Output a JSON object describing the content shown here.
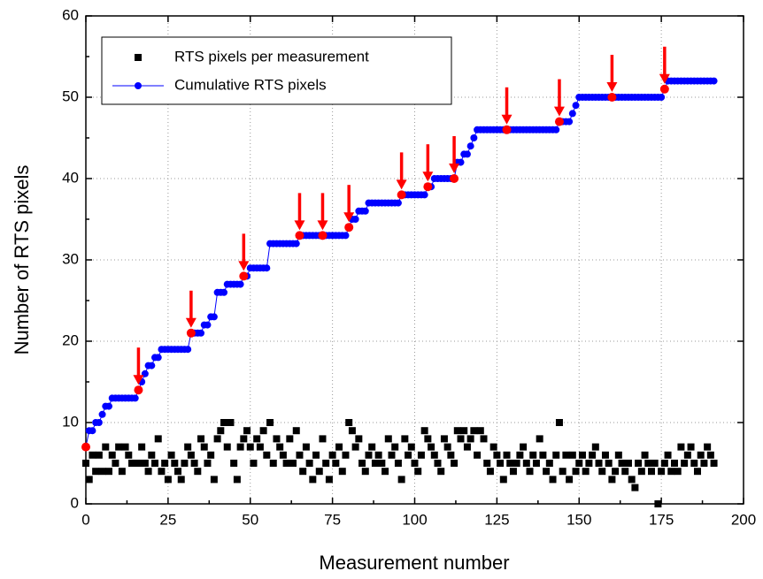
{
  "chart_data": {
    "type": "scatter-line",
    "x_label": "Measurement number",
    "y_label": "Number of RTS pixels",
    "xlim": [
      0,
      200
    ],
    "xticks": [
      0,
      25,
      50,
      75,
      100,
      125,
      150,
      175,
      200
    ],
    "ylim": [
      0,
      60
    ],
    "yticks": [
      0,
      10,
      20,
      30,
      40,
      50,
      60
    ],
    "grid": true,
    "legend": "upper left",
    "x": [
      0,
      1,
      2,
      3,
      4,
      5,
      6,
      7,
      8,
      9,
      10,
      11,
      12,
      13,
      14,
      15,
      16,
      17,
      18,
      19,
      20,
      21,
      22,
      23,
      24,
      25,
      26,
      27,
      28,
      29,
      30,
      31,
      32,
      33,
      34,
      35,
      36,
      37,
      38,
      39,
      40,
      41,
      42,
      43,
      44,
      45,
      46,
      47,
      48,
      49,
      50,
      51,
      52,
      53,
      54,
      55,
      56,
      57,
      58,
      59,
      60,
      61,
      62,
      63,
      64,
      65,
      66,
      67,
      68,
      69,
      70,
      71,
      72,
      73,
      74,
      75,
      76,
      77,
      78,
      79,
      80,
      81,
      82,
      83,
      84,
      85,
      86,
      87,
      88,
      89,
      90,
      91,
      92,
      93,
      94,
      95,
      96,
      97,
      98,
      99,
      100,
      101,
      102,
      103,
      104,
      105,
      106,
      107,
      108,
      109,
      110,
      111,
      112,
      113,
      114,
      115,
      116,
      117,
      118,
      119,
      120,
      121,
      122,
      123,
      124,
      125,
      126,
      127,
      128,
      129,
      130,
      131,
      132,
      133,
      134,
      135,
      136,
      137,
      138,
      139,
      140,
      141,
      142,
      143,
      144,
      145,
      146,
      147,
      148,
      149,
      150,
      151,
      152,
      153,
      154,
      155,
      156,
      157,
      158,
      159,
      160,
      161,
      162,
      163,
      164,
      165,
      166,
      167,
      168,
      169,
      170,
      171,
      172,
      173,
      174,
      175,
      176,
      177,
      178,
      179,
      180,
      181,
      182,
      183,
      184,
      185,
      186,
      187,
      188,
      189,
      190,
      191
    ],
    "series": [
      {
        "name": "RTS pixels per measurement",
        "color": "#000000",
        "marker": "square",
        "values": [
          5,
          3,
          6,
          4,
          6,
          4,
          7,
          4,
          6,
          5,
          7,
          4,
          7,
          6,
          5,
          5,
          5,
          7,
          5,
          4,
          6,
          5,
          8,
          4,
          5,
          3,
          6,
          5,
          4,
          3,
          5,
          7,
          6,
          5,
          4,
          8,
          7,
          5,
          6,
          3,
          8,
          9,
          10,
          7,
          10,
          5,
          3,
          7,
          8,
          9,
          7,
          5,
          8,
          7,
          9,
          6,
          10,
          5,
          8,
          7,
          6,
          5,
          8,
          5,
          9,
          6,
          4,
          7,
          5,
          3,
          6,
          4,
          8,
          5,
          3,
          6,
          5,
          7,
          4,
          6,
          10,
          9,
          7,
          8,
          5,
          4,
          6,
          7,
          5,
          6,
          5,
          4,
          8,
          6,
          7,
          5,
          3,
          8,
          6,
          7,
          5,
          4,
          6,
          9,
          8,
          7,
          6,
          5,
          4,
          8,
          7,
          6,
          5,
          9,
          8,
          9,
          7,
          8,
          9,
          6,
          9,
          8,
          5,
          4,
          7,
          6,
          5,
          3,
          6,
          5,
          4,
          5,
          6,
          7,
          5,
          4,
          6,
          5,
          8,
          6,
          4,
          5,
          3,
          6,
          10,
          4,
          6,
          3,
          6,
          4,
          5,
          6,
          4,
          5,
          6,
          7,
          5,
          4,
          6,
          5,
          3,
          4,
          6,
          5,
          4,
          5,
          3,
          2,
          5,
          4,
          6,
          5,
          4,
          5,
          0,
          4,
          5,
          6,
          4,
          5,
          4,
          7,
          5,
          6,
          7,
          5,
          4,
          6,
          5,
          7,
          6,
          5
        ]
      },
      {
        "name": "Cumulative RTS pixels",
        "color": "#0000ff",
        "marker": "circle",
        "line": true,
        "values": [
          7,
          9,
          9,
          10,
          10,
          11,
          12,
          12,
          13,
          13,
          13,
          13,
          13,
          13,
          13,
          13,
          14,
          15,
          16,
          17,
          17,
          18,
          18,
          19,
          19,
          19,
          19,
          19,
          19,
          19,
          19,
          19,
          21,
          21,
          21,
          21,
          22,
          22,
          23,
          23,
          26,
          26,
          26,
          27,
          27,
          27,
          27,
          27,
          28,
          28,
          29,
          29,
          29,
          29,
          29,
          29,
          32,
          32,
          32,
          32,
          32,
          32,
          32,
          32,
          32,
          33,
          33,
          33,
          33,
          33,
          33,
          33,
          33,
          33,
          33,
          33,
          33,
          33,
          33,
          33,
          34,
          35,
          35,
          36,
          36,
          36,
          37,
          37,
          37,
          37,
          37,
          37,
          37,
          37,
          37,
          37,
          38,
          38,
          38,
          38,
          38,
          38,
          38,
          38,
          39,
          39,
          40,
          40,
          40,
          40,
          40,
          40,
          40,
          42,
          42,
          43,
          43,
          44,
          45,
          46,
          46,
          46,
          46,
          46,
          46,
          46,
          46,
          46,
          46,
          46,
          46,
          46,
          46,
          46,
          46,
          46,
          46,
          46,
          46,
          46,
          46,
          46,
          46,
          46,
          47,
          47,
          47,
          47,
          48,
          49,
          50,
          50,
          50,
          50,
          50,
          50,
          50,
          50,
          50,
          50,
          50,
          50,
          50,
          50,
          50,
          50,
          50,
          50,
          50,
          50,
          50,
          50,
          50,
          50,
          50,
          50,
          51,
          52,
          52,
          52,
          52,
          52,
          52,
          52,
          52,
          52,
          52,
          52,
          52,
          52,
          52,
          52
        ]
      }
    ],
    "highlights": {
      "color": "#ff0000",
      "x": [
        0,
        16,
        32,
        48,
        65,
        72,
        80,
        96,
        104,
        112,
        128,
        144,
        160,
        176
      ],
      "values": [
        7,
        14,
        21,
        28,
        33,
        33,
        34,
        38,
        39,
        40,
        46,
        47,
        50,
        51
      ]
    }
  }
}
